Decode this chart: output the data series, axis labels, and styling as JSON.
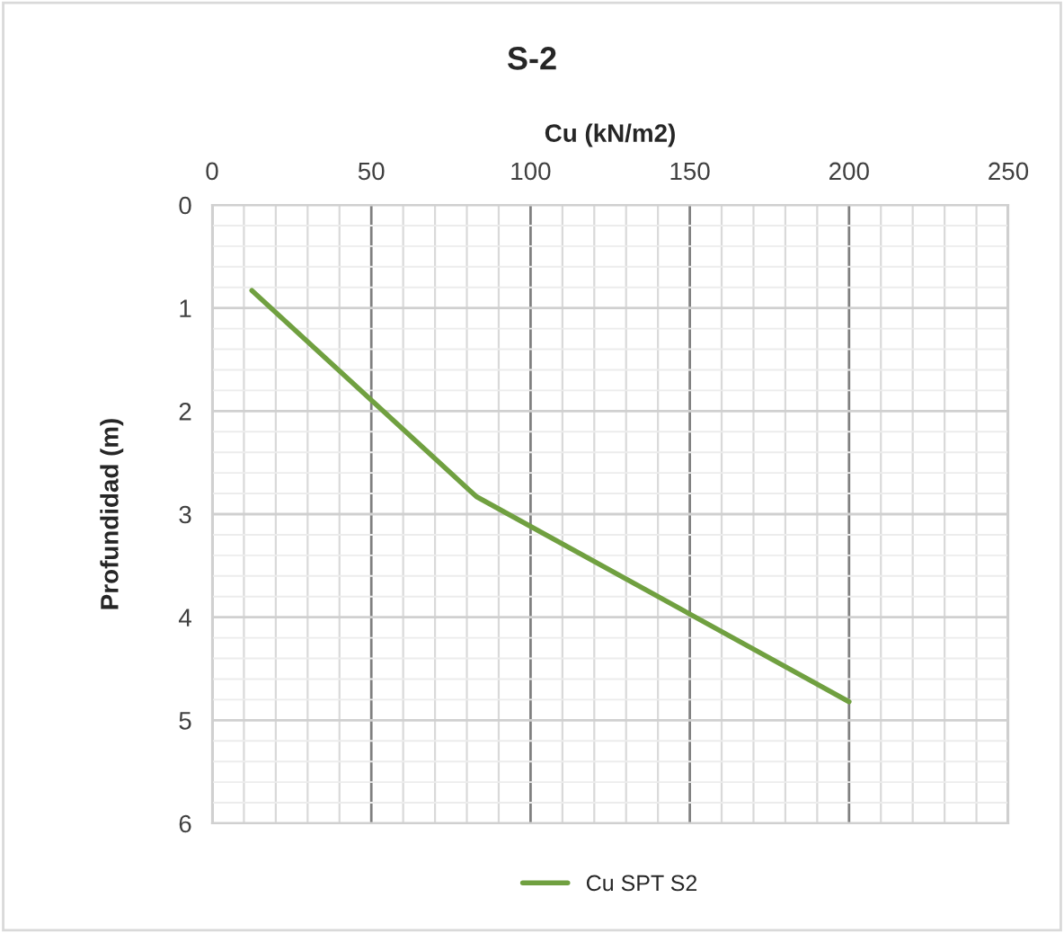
{
  "chart_data": {
    "type": "line",
    "title": "S-2",
    "xlabel": "Cu (kN/m2)",
    "ylabel": "Profundidad (m)",
    "x": [
      12.5,
      83,
      200
    ],
    "series": [
      {
        "name": "Cu SPT S2",
        "color": "#70a040",
        "values": [
          0.83,
          2.83,
          4.82
        ]
      }
    ],
    "xlim": [
      0,
      250
    ],
    "xticks": [
      0,
      50,
      100,
      150,
      200,
      250
    ],
    "ylim": [
      6,
      0
    ],
    "yticks": [
      0,
      1,
      2,
      3,
      4,
      5,
      6
    ],
    "grid": true,
    "legend": "bottom",
    "marker": "none",
    "line_style": "solid"
  }
}
